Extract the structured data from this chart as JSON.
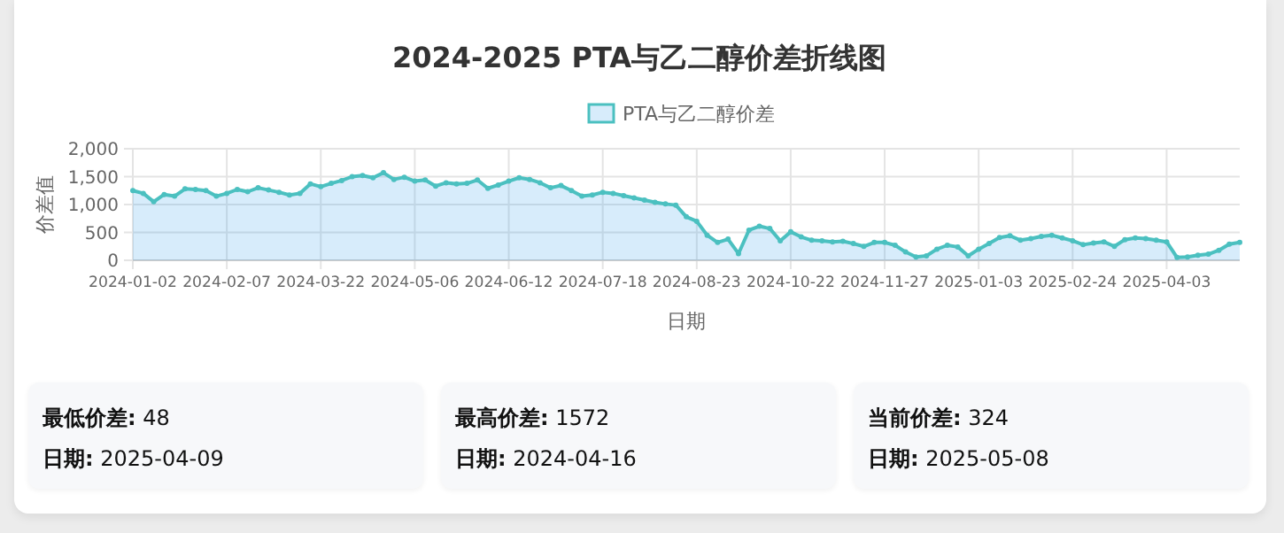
{
  "chart_data": [
    {
      "type": "area",
      "title": "2024-2025 PTA与乙二醇价差折线图",
      "xlabel": "日期",
      "ylabel": "价差值",
      "legend": "top",
      "grid": true,
      "marker": "circle",
      "ylim": [
        0,
        2000
      ],
      "yticks": [
        0,
        {
          "value": 500,
          "label": "500"
        },
        {
          "value": 1000,
          "label": "1,000"
        },
        {
          "value": 1500,
          "label": "1,500"
        },
        {
          "value": 2000,
          "label": "2,000"
        }
      ],
      "categories": [
        "2024-01-02",
        null,
        null,
        null,
        null,
        null,
        null,
        null,
        null,
        "2024-02-07",
        null,
        null,
        null,
        null,
        null,
        null,
        null,
        null,
        "2024-03-22",
        null,
        null,
        null,
        null,
        null,
        null,
        null,
        null,
        "2024-05-06",
        null,
        null,
        null,
        null,
        null,
        null,
        null,
        null,
        "2024-06-12",
        null,
        null,
        null,
        null,
        null,
        null,
        null,
        null,
        "2024-07-18",
        null,
        null,
        null,
        null,
        null,
        null,
        null,
        null,
        "2024-08-23",
        null,
        null,
        null,
        null,
        null,
        null,
        null,
        null,
        "2024-10-22",
        null,
        null,
        null,
        null,
        null,
        null,
        null,
        null,
        "2024-11-27",
        null,
        null,
        null,
        null,
        null,
        null,
        null,
        null,
        "2025-01-03",
        null,
        null,
        null,
        null,
        null,
        null,
        null,
        null,
        "2025-02-24",
        null,
        null,
        null,
        null,
        null,
        null,
        null,
        null,
        "2025-04-03",
        null,
        null,
        null,
        null,
        null,
        null,
        null
      ],
      "series": [
        {
          "name": "PTA与乙二醇价差",
          "color": "#4bc0c0",
          "values": [
            1250,
            1200,
            1050,
            1180,
            1150,
            1280,
            1270,
            1250,
            1150,
            1200,
            1270,
            1230,
            1300,
            1260,
            1220,
            1170,
            1200,
            1370,
            1320,
            1380,
            1430,
            1500,
            1520,
            1480,
            1570,
            1450,
            1490,
            1420,
            1440,
            1330,
            1390,
            1370,
            1380,
            1440,
            1290,
            1350,
            1420,
            1480,
            1450,
            1390,
            1300,
            1340,
            1250,
            1150,
            1170,
            1220,
            1200,
            1160,
            1120,
            1080,
            1040,
            1010,
            990,
            780,
            700,
            450,
            320,
            380,
            120,
            540,
            610,
            570,
            350,
            510,
            420,
            360,
            350,
            330,
            340,
            300,
            250,
            320,
            320,
            270,
            150,
            60,
            80,
            200,
            270,
            240,
            80,
            200,
            300,
            410,
            440,
            360,
            390,
            430,
            450,
            400,
            350,
            280,
            310,
            330,
            250,
            370,
            400,
            390,
            360,
            330,
            50,
            60,
            90,
            110,
            180,
            290,
            320
          ]
        }
      ]
    },
    {
      "type": "other",
      "annotations": [
        "**最低价差:** 48",
        "**日期:** 2025-04-09"
      ]
    },
    {
      "type": "other",
      "annotations": [
        "**最高价差:** 1572",
        "**日期:** 2024-04-16"
      ]
    },
    {
      "type": "other",
      "annotations": [
        "**当前价差:** 324",
        "**日期:** 2025-05-08"
      ]
    }
  ]
}
